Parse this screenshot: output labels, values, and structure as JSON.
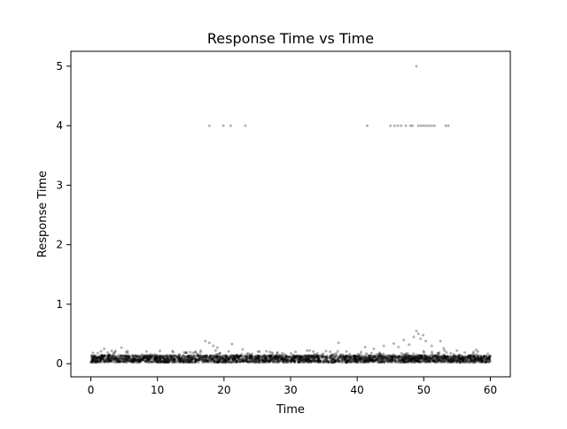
{
  "chart_data": {
    "type": "scatter",
    "title": "Response Time vs Time",
    "xlabel": "Time",
    "ylabel": "Response Time",
    "xlim": [
      -3,
      63
    ],
    "ylim": [
      -0.22,
      5.25
    ],
    "xticks": [
      0,
      10,
      20,
      30,
      40,
      50,
      60
    ],
    "yticks": [
      0,
      1,
      2,
      3,
      4,
      5
    ],
    "grid": false,
    "legend": "none",
    "point_color": "#000000",
    "point_alpha": 0.3,
    "series": [
      {
        "outliers": [
          {
            "x": 17.8,
            "y": 4.0
          },
          {
            "x": 19.9,
            "y": 4.0
          },
          {
            "x": 21.0,
            "y": 4.0
          },
          {
            "x": 23.2,
            "y": 4.0
          },
          {
            "x": 41.5,
            "y": 4.0
          },
          {
            "x": 45.0,
            "y": 4.0
          },
          {
            "x": 45.6,
            "y": 4.0
          },
          {
            "x": 46.1,
            "y": 4.0
          },
          {
            "x": 46.6,
            "y": 4.0
          },
          {
            "x": 47.3,
            "y": 4.0
          },
          {
            "x": 48.0,
            "y": 4.0
          },
          {
            "x": 48.3,
            "y": 4.0
          },
          {
            "x": 49.2,
            "y": 4.0
          },
          {
            "x": 49.6,
            "y": 4.0
          },
          {
            "x": 50.0,
            "y": 4.0
          },
          {
            "x": 50.4,
            "y": 4.0
          },
          {
            "x": 50.8,
            "y": 4.0
          },
          {
            "x": 51.2,
            "y": 4.0
          },
          {
            "x": 51.6,
            "y": 4.0
          },
          {
            "x": 53.3,
            "y": 4.0
          },
          {
            "x": 53.7,
            "y": 4.0
          },
          {
            "x": 48.9,
            "y": 5.0
          }
        ],
        "mid": [
          {
            "x": 2.0,
            "y": 0.25
          },
          {
            "x": 4.6,
            "y": 0.27
          },
          {
            "x": 16.5,
            "y": 0.22
          },
          {
            "x": 17.2,
            "y": 0.38
          },
          {
            "x": 17.8,
            "y": 0.35
          },
          {
            "x": 18.4,
            "y": 0.3
          },
          {
            "x": 19.0,
            "y": 0.27
          },
          {
            "x": 21.2,
            "y": 0.33
          },
          {
            "x": 22.8,
            "y": 0.24
          },
          {
            "x": 37.2,
            "y": 0.35
          },
          {
            "x": 41.2,
            "y": 0.28
          },
          {
            "x": 42.5,
            "y": 0.25
          },
          {
            "x": 44.0,
            "y": 0.3
          },
          {
            "x": 45.5,
            "y": 0.34
          },
          {
            "x": 46.2,
            "y": 0.28
          },
          {
            "x": 47.0,
            "y": 0.4
          },
          {
            "x": 47.8,
            "y": 0.32
          },
          {
            "x": 48.5,
            "y": 0.45
          },
          {
            "x": 48.9,
            "y": 0.55
          },
          {
            "x": 49.2,
            "y": 0.5
          },
          {
            "x": 49.5,
            "y": 0.42
          },
          {
            "x": 49.9,
            "y": 0.48
          },
          {
            "x": 50.3,
            "y": 0.38
          },
          {
            "x": 51.2,
            "y": 0.3
          },
          {
            "x": 52.5,
            "y": 0.38
          },
          {
            "x": 53.0,
            "y": 0.26
          },
          {
            "x": 55.0,
            "y": 0.22
          },
          {
            "x": 57.5,
            "y": 0.2
          }
        ],
        "baseline": {
          "x_range": [
            0,
            60
          ],
          "y_typical": [
            0.02,
            0.14
          ],
          "count": 3000
        }
      }
    ]
  }
}
